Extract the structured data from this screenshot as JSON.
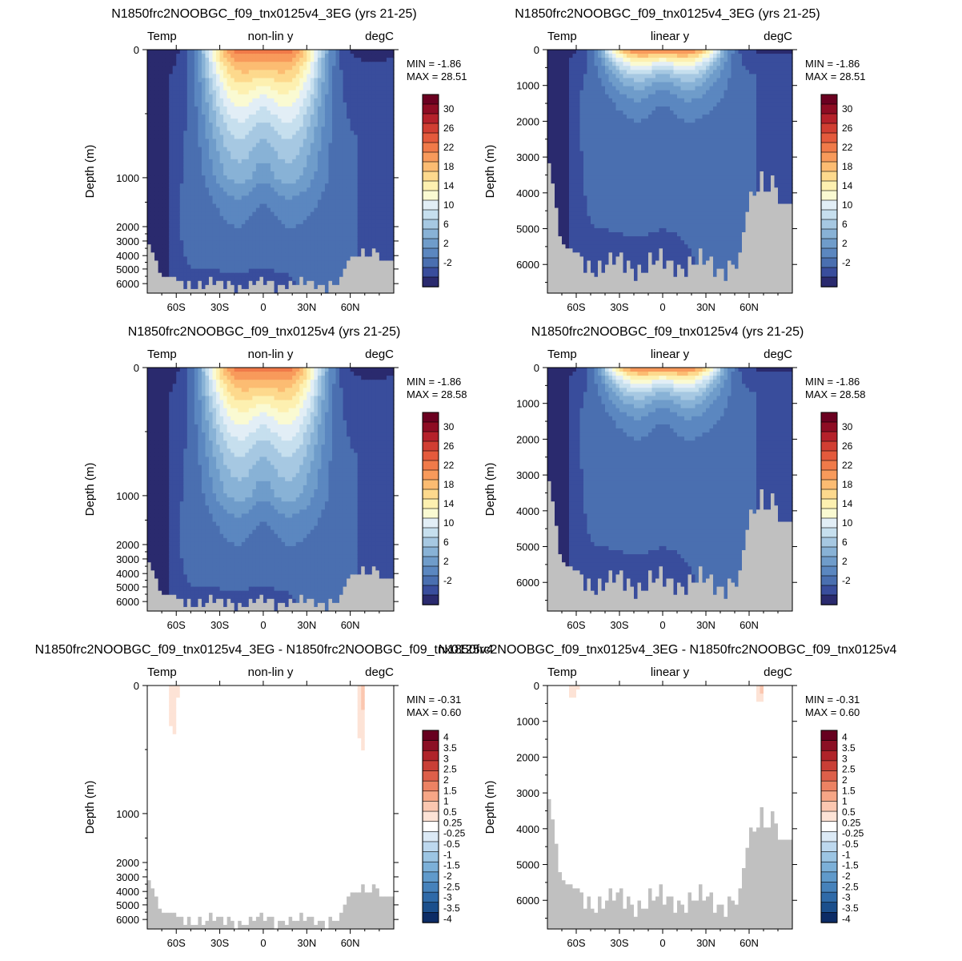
{
  "chart_data": [
    {
      "type": "heatmap",
      "title": "N1850frc2NOOBGC_f09_tnx0125v4_3EG (yrs 21-25)",
      "left_label": "Temp",
      "center_label": "non-lin y",
      "right_label": "degC",
      "ylabel": "Depth (m)",
      "y_scale": "non-linear",
      "ylim": [
        0,
        6500
      ],
      "y_ticks": [
        "0",
        "1000",
        "2000",
        "3000",
        "4000",
        "5000",
        "6000"
      ],
      "x_ticks": [
        "60S",
        "30S",
        "0",
        "30N",
        "60N"
      ],
      "xlim": [
        -80,
        90
      ],
      "min_text": "MIN = -1.86",
      "max_text": "MAX = 28.51",
      "colorbar_labels": [
        "30",
        "26",
        "22",
        "18",
        "14",
        "10",
        "6",
        "2",
        "-2"
      ],
      "field": "temp"
    },
    {
      "type": "heatmap",
      "title": "N1850frc2NOOBGC_f09_tnx0125v4_3EG (yrs 21-25)",
      "left_label": "Temp",
      "center_label": "linear y",
      "right_label": "degC",
      "ylabel": "Depth (m)",
      "y_scale": "linear",
      "ylim": [
        0,
        6800
      ],
      "y_ticks": [
        "0",
        "1000",
        "2000",
        "3000",
        "4000",
        "5000",
        "6000"
      ],
      "x_ticks": [
        "60S",
        "30S",
        "0",
        "30N",
        "60N"
      ],
      "xlim": [
        -80,
        90
      ],
      "min_text": "MIN = -1.86",
      "max_text": "MAX = 28.51",
      "colorbar_labels": [
        "30",
        "26",
        "22",
        "18",
        "14",
        "10",
        "6",
        "2",
        "-2"
      ],
      "field": "temp"
    },
    {
      "type": "heatmap",
      "title": "N1850frc2NOOBGC_f09_tnx0125v4 (yrs 21-25)",
      "left_label": "Temp",
      "center_label": "non-lin y",
      "right_label": "degC",
      "ylabel": "Depth (m)",
      "y_scale": "non-linear",
      "ylim": [
        0,
        6500
      ],
      "y_ticks": [
        "0",
        "1000",
        "2000",
        "3000",
        "4000",
        "5000",
        "6000"
      ],
      "x_ticks": [
        "60S",
        "30S",
        "0",
        "30N",
        "60N"
      ],
      "xlim": [
        -80,
        90
      ],
      "min_text": "MIN = -1.86",
      "max_text": "MAX = 28.58",
      "colorbar_labels": [
        "30",
        "26",
        "22",
        "18",
        "14",
        "10",
        "6",
        "2",
        "-2"
      ],
      "field": "temp"
    },
    {
      "type": "heatmap",
      "title": "N1850frc2NOOBGC_f09_tnx0125v4 (yrs 21-25)",
      "left_label": "Temp",
      "center_label": "linear y",
      "right_label": "degC",
      "ylabel": "Depth (m)",
      "y_scale": "linear",
      "ylim": [
        0,
        6800
      ],
      "y_ticks": [
        "0",
        "1000",
        "2000",
        "3000",
        "4000",
        "5000",
        "6000"
      ],
      "x_ticks": [
        "60S",
        "30S",
        "0",
        "30N",
        "60N"
      ],
      "xlim": [
        -80,
        90
      ],
      "min_text": "MIN = -1.86",
      "max_text": "MAX = 28.58",
      "colorbar_labels": [
        "30",
        "26",
        "22",
        "18",
        "14",
        "10",
        "6",
        "2",
        "-2"
      ],
      "field": "temp"
    },
    {
      "type": "heatmap",
      "title": "N1850frc2NOOBGC_f09_tnx0125v4_3EG - N1850frc2NOOBGC_f09_tnx0125v4",
      "left_label": "Temp",
      "center_label": "non-lin y",
      "right_label": "degC",
      "ylabel": "Depth (m)",
      "y_scale": "non-linear",
      "ylim": [
        0,
        6500
      ],
      "y_ticks": [
        "0",
        "1000",
        "2000",
        "3000",
        "4000",
        "5000",
        "6000"
      ],
      "x_ticks": [
        "60S",
        "30S",
        "0",
        "30N",
        "60N"
      ],
      "xlim": [
        -80,
        90
      ],
      "min_text": "MIN = -0.31",
      "max_text": "MAX =   0.60",
      "colorbar_labels": [
        "4",
        "3.5",
        "3",
        "2.5",
        "2",
        "1.5",
        "1",
        "0.5",
        "0.25",
        "-0.25",
        "-0.5",
        "-1",
        "-1.5",
        "-2",
        "-2.5",
        "-3",
        "-3.5",
        "-4"
      ],
      "field": "diff"
    },
    {
      "type": "heatmap",
      "title": "N1850frc2NOOBGC_f09_tnx0125v4_3EG - N1850frc2NOOBGC_f09_tnx0125v4",
      "left_label": "Temp",
      "center_label": "linear y",
      "right_label": "degC",
      "ylabel": "Depth (m)",
      "y_scale": "linear",
      "ylim": [
        0,
        6800
      ],
      "y_ticks": [
        "0",
        "1000",
        "2000",
        "3000",
        "4000",
        "5000",
        "6000"
      ],
      "x_ticks": [
        "60S",
        "30S",
        "0",
        "30N",
        "60N"
      ],
      "xlim": [
        -80,
        90
      ],
      "min_text": "MIN = -0.31",
      "max_text": "MAX =   0.60",
      "colorbar_labels": [
        "4",
        "3.5",
        "3",
        "2.5",
        "2",
        "1.5",
        "1",
        "0.5",
        "0.25",
        "-0.25",
        "-0.5",
        "-1",
        "-1.5",
        "-2",
        "-2.5",
        "-3",
        "-3.5",
        "-4"
      ],
      "field": "diff"
    }
  ],
  "colors": {
    "land": "#c0c0c0",
    "temp_levels": [
      "#2a2a6e",
      "#394d9c",
      "#4a6fb0",
      "#5b87c0",
      "#6f9cca",
      "#88b2d6",
      "#a6c8e2",
      "#c6dfee",
      "#e2eef6",
      "#fafad2",
      "#fdf0b0",
      "#fdd98d",
      "#fcbc72",
      "#f89a5b",
      "#f07a49",
      "#e45a3c",
      "#d13e32",
      "#b5212a",
      "#8e0c23",
      "#6b0020"
    ],
    "diff_levels": [
      "#0c2c66",
      "#1b4f8c",
      "#2f6aa8",
      "#4682bb",
      "#609acb",
      "#7cb0d8",
      "#9cc5e3",
      "#bdd8ee",
      "#dceaf6",
      "#ffffff",
      "#fde3d6",
      "#fbc7b0",
      "#f6a686",
      "#ec8263",
      "#dd5f4a",
      "#c93f36",
      "#b02429",
      "#8b0f24",
      "#67001f"
    ]
  }
}
